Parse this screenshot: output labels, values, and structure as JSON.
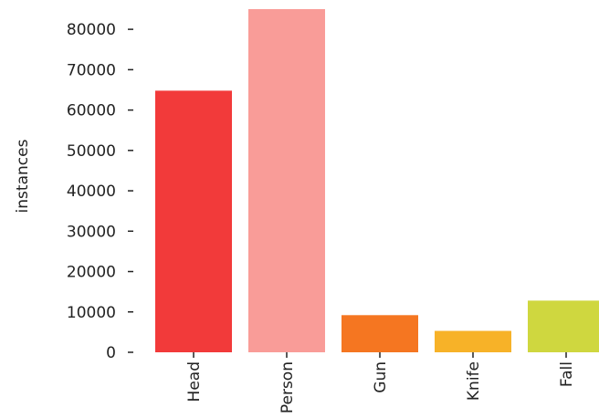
{
  "chart_data": {
    "type": "bar",
    "title": "",
    "xlabel": "",
    "ylabel": "instances",
    "categories": [
      "Head",
      "Person",
      "Gun",
      "Knife",
      "Fall"
    ],
    "values": [
      64800,
      85000,
      9200,
      5300,
      12800
    ],
    "colors": [
      "#f23a3a",
      "#f99c98",
      "#f57621",
      "#f7b228",
      "#cfd73f"
    ],
    "ylim": [
      0,
      85000
    ],
    "yticks": [
      0,
      10000,
      20000,
      30000,
      40000,
      50000,
      60000,
      70000,
      80000
    ],
    "ytick_labels": [
      "0",
      "10000",
      "20000",
      "30000",
      "40000",
      "50000",
      "60000",
      "70000",
      "80000"
    ],
    "grid": false,
    "legend": "none"
  }
}
